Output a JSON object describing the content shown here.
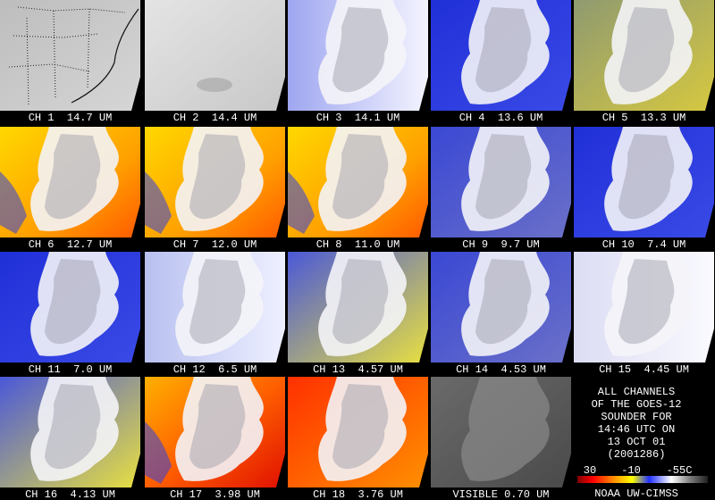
{
  "panels": [
    {
      "label": "CH 1  14.7 UM"
    },
    {
      "label": "CH 2  14.4 UM"
    },
    {
      "label": "CH 3  14.1 UM"
    },
    {
      "label": "CH 4  13.6 UM"
    },
    {
      "label": "CH 5  13.3 UM"
    },
    {
      "label": "CH 6  12.7 UM"
    },
    {
      "label": "CH 7  12.0 UM"
    },
    {
      "label": "CH 8  11.0 UM"
    },
    {
      "label": "CH 9  9.7 UM"
    },
    {
      "label": "CH 10  7.4 UM"
    },
    {
      "label": "CH 11  7.0 UM"
    },
    {
      "label": "CH 12  6.5 UM"
    },
    {
      "label": "CH 13  4.57 UM"
    },
    {
      "label": "CH 14  4.53 UM"
    },
    {
      "label": "CH 15  4.45 UM"
    },
    {
      "label": "CH 16  4.13 UM"
    },
    {
      "label": "CH 17  3.98 UM"
    },
    {
      "label": "CH 18  3.76 UM"
    },
    {
      "label": "VISIBLE 0.70 UM"
    }
  ],
  "info": {
    "lines": [
      "ALL CHANNELS",
      "OF THE GOES-12",
      "SOUNDER FOR",
      "14:46 UTC ON",
      "13 OCT 01",
      "(2001286)"
    ],
    "scale_labels": [
      "30",
      "-10",
      "-55C"
    ],
    "credit": "NOAA UW-CIMSS"
  }
}
